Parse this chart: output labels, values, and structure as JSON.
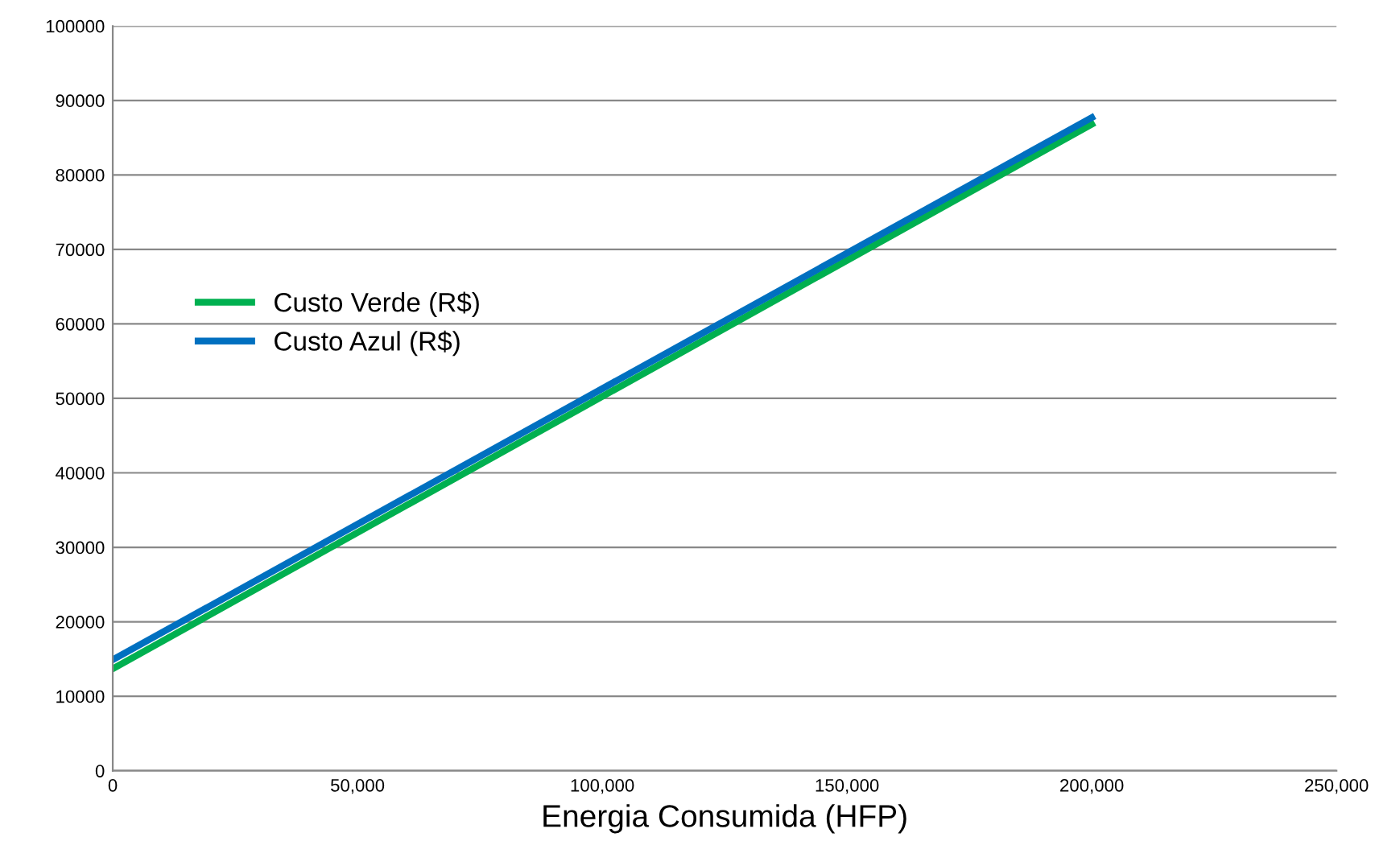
{
  "chart_data": {
    "type": "line",
    "xlabel": "Energia Consumida (HFP)",
    "xlim": [
      0,
      250000
    ],
    "xticks": [
      0,
      {
        "value": 50000,
        "label": "50,000"
      },
      {
        "value": 100000,
        "label": "100,000"
      },
      {
        "value": 150000,
        "label": "150,000"
      },
      {
        "value": 200000,
        "label": "200,000"
      },
      {
        "value": 250000,
        "label": "250,000"
      }
    ],
    "ylim": [
      0,
      100000
    ],
    "yticks": [
      0,
      10000,
      20000,
      30000,
      40000,
      50000,
      60000,
      70000,
      80000,
      90000,
      100000
    ],
    "x": [
      0,
      200000
    ],
    "grid": "y",
    "legend": "left",
    "marker": "none",
    "line_style": "solid",
    "series": [
      {
        "name": "Custo Verde (R$)",
        "color": "#00b050",
        "values": [
          13700,
          86800
        ]
      },
      {
        "name": "Custo Azul (R$)",
        "color": "#0070c0",
        "values": [
          14900,
          87700
        ]
      }
    ]
  }
}
